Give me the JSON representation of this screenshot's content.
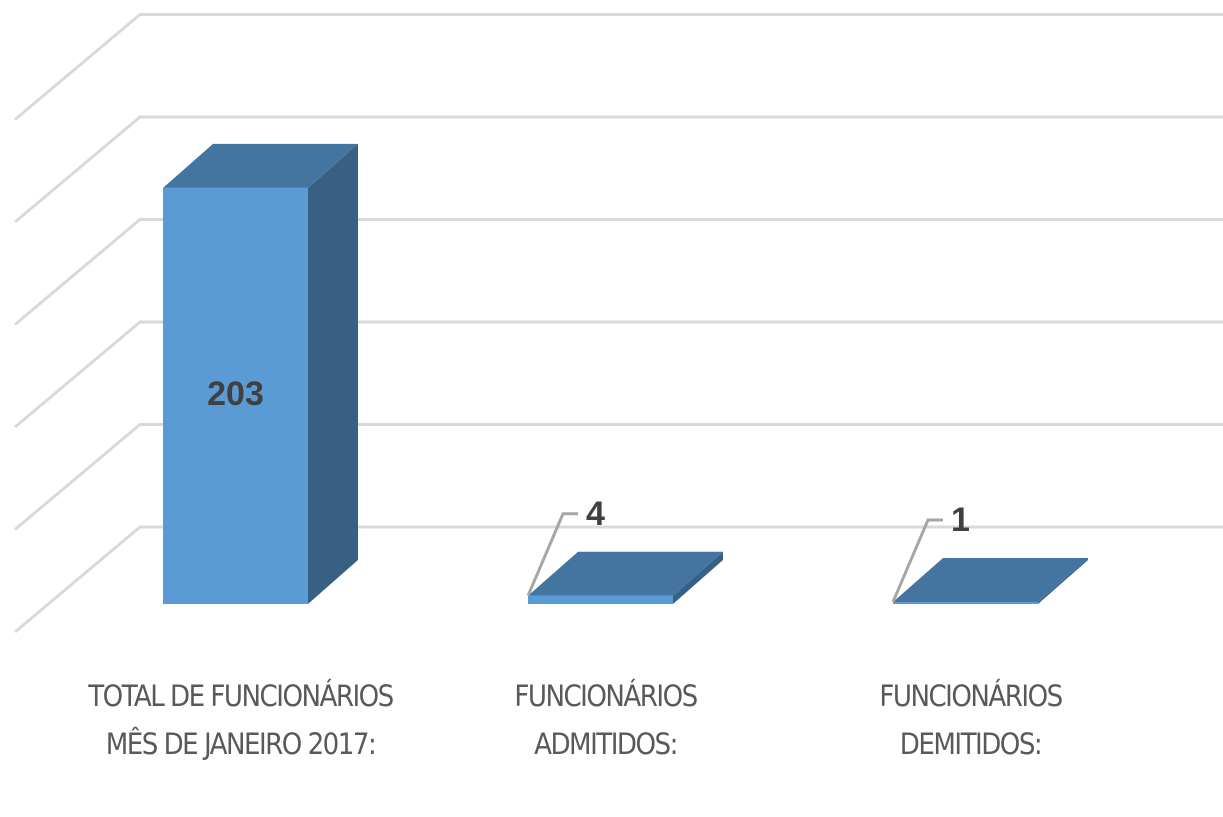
{
  "chart_data": {
    "type": "bar3d",
    "categories": [
      "TOTAL DE FUNCIONÁRIOS MÊS DE JANEIRO 2017:",
      "FUNCIONÁRIOS ADMITIDOS:",
      "FUNCIONÁRIOS DEMITIDOS:"
    ],
    "values": [
      203,
      4,
      1
    ],
    "color": "#5b9bd5",
    "ylim": [
      0,
      250
    ],
    "yticks": [
      0,
      50,
      100,
      150,
      200,
      250
    ],
    "grid": true
  }
}
